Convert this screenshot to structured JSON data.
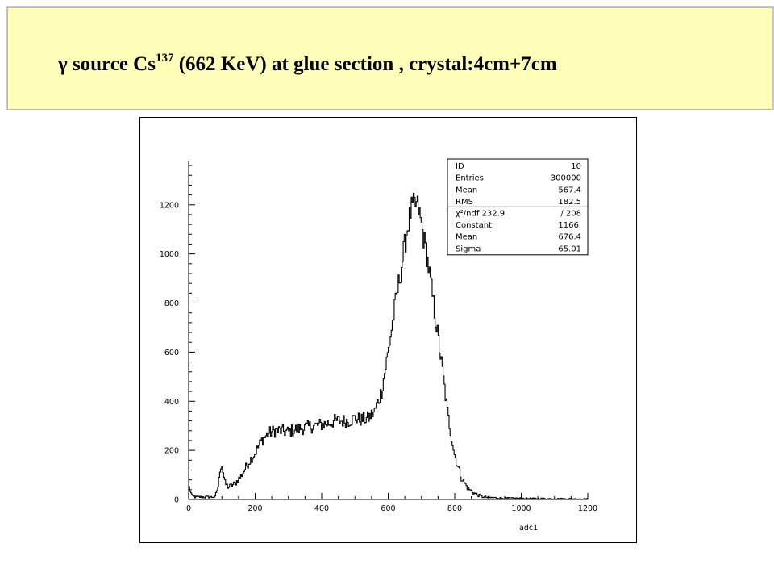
{
  "slide": {
    "title_prefix": "γ source Cs",
    "title_sup": "137",
    "title_suffix": " (662 KeV) at glue section , crystal:4cm+7cm"
  },
  "chart_data": {
    "type": "histogram",
    "xlabel": "adc1",
    "ylabel": "",
    "xlim": [
      0,
      1200
    ],
    "ylim": [
      0,
      1380
    ],
    "x_ticks": [
      0,
      200,
      400,
      600,
      800,
      1000,
      1200
    ],
    "y_ticks": [
      0,
      200,
      400,
      600,
      800,
      1000,
      1200
    ],
    "grid": false,
    "approximate_bins": {
      "x": [
        0,
        10,
        20,
        40,
        60,
        80,
        90,
        95,
        100,
        105,
        110,
        120,
        140,
        160,
        180,
        200,
        220,
        240,
        260,
        280,
        300,
        320,
        340,
        360,
        380,
        400,
        420,
        440,
        460,
        480,
        500,
        520,
        540,
        560,
        580,
        600,
        620,
        640,
        660,
        670,
        680,
        690,
        700,
        720,
        740,
        760,
        780,
        800,
        820,
        840,
        860,
        880,
        900,
        950,
        1000,
        1100,
        1200
      ],
      "y": [
        55,
        15,
        10,
        10,
        10,
        10,
        60,
        130,
        145,
        100,
        65,
        50,
        65,
        100,
        150,
        190,
        240,
        270,
        280,
        280,
        275,
        285,
        290,
        295,
        300,
        305,
        310,
        320,
        320,
        320,
        330,
        325,
        330,
        360,
        440,
        600,
        780,
        950,
        1120,
        1180,
        1200,
        1190,
        1120,
        960,
        760,
        560,
        340,
        180,
        90,
        45,
        25,
        12,
        8,
        5,
        4,
        3,
        2
      ]
    },
    "stats": {
      "rows": [
        [
          "ID",
          "10"
        ],
        [
          "Entries",
          "300000"
        ],
        [
          "Mean",
          "567.4"
        ],
        [
          "RMS",
          "182.5"
        ]
      ],
      "fit_rows": [
        [
          "χ²/ndf  232.9",
          "/  208"
        ],
        [
          "Constant",
          "1166."
        ],
        [
          "Mean",
          "676.4"
        ],
        [
          "Sigma",
          "65.01"
        ]
      ]
    }
  }
}
